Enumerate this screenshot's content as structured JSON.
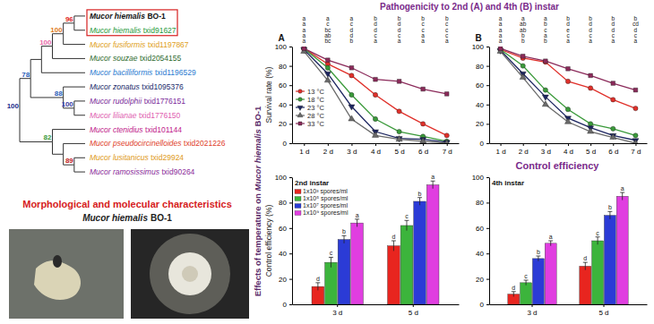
{
  "tree": {
    "root": {
      "support": 100,
      "color": "#1a2a8a",
      "children": [
        {
          "support": 78,
          "color": "#2a5cb8",
          "children": [
            {
              "children": [
                {
                  "support": 100,
                  "color": "#e86aa6",
                  "children": [
                    {
                      "support": 100,
                      "color": "#e07a1a",
                      "children": [
                        {
                          "support": 96,
                          "color": "#e02020",
                          "children": [
                            {
                              "name": "Mucor hiemalis",
                              "id": "BO-1",
                              "color": "#111111"
                            },
                            {
                              "name": "Mucor hiemalis",
                              "id": "txid91627",
                              "color": "#1f9a3a"
                            }
                          ]
                        },
                        {
                          "name": "Mucor fusiformis",
                          "id": "txid1197867",
                          "color": "#e0a020"
                        }
                      ]
                    },
                    {
                      "name": "Mucor souzae",
                      "id": "txid2054155",
                      "color": "#2e6b2e"
                    }
                  ]
                },
                {
                  "name": "Mucor bacilliformis",
                  "id": "txid1196529",
                  "color": "#2a7ad0"
                }
              ]
            },
            {
              "support": 88,
              "color": "#2a5cb8",
              "children": [
                {
                  "name": "Mucor zonatus",
                  "id": "txid1095376",
                  "color": "#1a2a6a"
                },
                {
                  "support": 100,
                  "color": "#3a3aa0",
                  "children": [
                    {
                      "name": "Mucor rudolphii",
                      "id": "txid1776151",
                      "color": "#7a2a9a"
                    },
                    {
                      "name": "Mucor lilianae",
                      "id": "txid1776150",
                      "color": "#e060b0"
                    }
                  ]
                }
              ]
            }
          ]
        },
        {
          "support": 82,
          "color": "#3a9a3a",
          "children": [
            {
              "name": "Mucor ctenidius",
              "id": "txid101144",
              "color": "#c0208a"
            },
            {
              "children": [
                {
                  "name": "Mucor pseudocircinelloides",
                  "id": "txid2021226",
                  "color": "#e0402a"
                },
                {
                  "support": 89,
                  "color": "#c02020",
                  "children": [
                    {
                      "name": "Mucor lusitanicus",
                      "id": "txid29924",
                      "color": "#e09a20"
                    },
                    {
                      "name": "Mucor ramosissimus",
                      "id": "txid90264",
                      "color": "#8a2a9a"
                    }
                  ]
                }
              ]
            }
          ]
        }
      ]
    }
  },
  "morphology": {
    "title": "Morphological and molecular characteristics",
    "species": "Mucor hiemalis",
    "strain": "BO-1"
  },
  "headings": {
    "pathogenicity": "Pathogenicity to 2nd (A) and 4th (B) instar",
    "control": "Control efficiency"
  },
  "y_title": {
    "prefix": "Effects of temperature on",
    "species": "Mucor hiemalis",
    "strain": "BO-1"
  },
  "chart_data": [
    {
      "type": "line",
      "title": "A",
      "y_label": "Survival rate (%)",
      "categories": [
        "1 d",
        "2 d",
        "3 d",
        "4 d",
        "5 d",
        "6 d",
        "7 d"
      ],
      "ylim": [
        0,
        100
      ],
      "yticks": [
        0,
        20,
        40,
        60,
        80,
        100
      ],
      "legend": "left",
      "series": [
        {
          "name": "13 °C",
          "color": "#e0302a",
          "marker": "circle",
          "values": [
            98,
            82,
            70,
            50,
            33,
            20,
            8
          ]
        },
        {
          "name": "18 °C",
          "color": "#3a9a3a",
          "marker": "circle",
          "values": [
            98,
            78,
            50,
            25,
            12,
            7,
            2
          ]
        },
        {
          "name": "23 °C",
          "color": "#1c2560",
          "marker": "triangle-down",
          "values": [
            97,
            72,
            38,
            12,
            5,
            4,
            1
          ]
        },
        {
          "name": "28 °C",
          "color": "#6a6a6a",
          "marker": "triangle",
          "values": [
            95,
            65,
            25,
            8,
            4,
            2,
            0
          ]
        },
        {
          "name": "33 °C",
          "color": "#8b2a5a",
          "marker": "square",
          "values": [
            98,
            86,
            78,
            66,
            64,
            56,
            51
          ]
        }
      ],
      "letters": [
        [
          "a",
          "a",
          "a",
          "a",
          "a"
        ],
        [
          "a",
          "c",
          "bc",
          "ab",
          "bc"
        ],
        [
          "a",
          "c",
          "d",
          "d",
          "b"
        ],
        [
          "b",
          "d",
          "d",
          "c",
          "a"
        ],
        [
          "b",
          "d",
          "d",
          "c",
          "a"
        ],
        [
          "b",
          "c",
          "c",
          "a",
          "a"
        ],
        [
          "b",
          "c",
          "c",
          "c",
          "a"
        ]
      ]
    },
    {
      "type": "line",
      "title": "B",
      "categories": [
        "1 d",
        "2 d",
        "3 d",
        "4 d",
        "5 d",
        "6 d",
        "7 d"
      ],
      "ylim": [
        0,
        100
      ],
      "yticks": [
        0,
        20,
        40,
        60,
        80,
        100
      ],
      "series": [
        {
          "color": "#e0302a",
          "marker": "circle",
          "values": [
            97,
            88,
            84,
            64,
            57,
            45,
            36
          ]
        },
        {
          "color": "#3a9a3a",
          "marker": "circle",
          "values": [
            97,
            80,
            55,
            35,
            20,
            15,
            8
          ]
        },
        {
          "color": "#1c2560",
          "marker": "triangle-down",
          "values": [
            96,
            72,
            48,
            26,
            16,
            8,
            3
          ]
        },
        {
          "color": "#6a6a6a",
          "marker": "triangle",
          "values": [
            95,
            68,
            40,
            22,
            12,
            6,
            0
          ]
        },
        {
          "color": "#8b2a5a",
          "marker": "square",
          "values": [
            98,
            90,
            85,
            77,
            70,
            62,
            55
          ]
        }
      ],
      "letters": [
        [
          "a",
          "a",
          "a",
          "a",
          "a"
        ],
        [
          "a",
          "ab",
          "ab",
          "b",
          "b"
        ],
        [
          "a",
          "b",
          "c",
          "a",
          "b"
        ],
        [
          "b",
          "d",
          "e",
          "c",
          "a"
        ],
        [
          "b",
          "d",
          "d",
          "c",
          "a"
        ],
        [
          "b",
          "d",
          "d",
          "c",
          "a"
        ],
        [
          "b",
          "cd",
          "d",
          "c",
          "a"
        ]
      ]
    },
    {
      "type": "bar",
      "title": "2nd instar",
      "y_label": "Control efficiency (%)",
      "categories": [
        "3 d",
        "5 d"
      ],
      "ylim": [
        0,
        100
      ],
      "yticks": [
        0,
        20,
        40,
        60,
        80,
        100
      ],
      "legend": "upper left",
      "series": [
        {
          "name": "1x10³ spores/ml",
          "color": "#e8251f",
          "values": [
            14,
            46
          ],
          "errors": [
            3,
            4
          ],
          "letters": [
            "d",
            "d"
          ]
        },
        {
          "name": "1x10⁵ spores/ml",
          "color": "#3cb43c",
          "values": [
            33,
            62
          ],
          "errors": [
            4,
            4
          ],
          "letters": [
            "c",
            "c"
          ]
        },
        {
          "name": "1x10⁷ spores/ml",
          "color": "#2b3bd6",
          "values": [
            51,
            81
          ],
          "errors": [
            3,
            3
          ],
          "letters": [
            "b",
            "b"
          ]
        },
        {
          "name": "1x10⁹ spores/ml",
          "color": "#e03ee0",
          "values": [
            64,
            94
          ],
          "errors": [
            3,
            3
          ],
          "letters": [
            "a",
            "a"
          ]
        }
      ]
    },
    {
      "type": "bar",
      "title": "4th instar",
      "categories": [
        "3 d",
        "5 d"
      ],
      "ylim": [
        0,
        100
      ],
      "yticks": [
        0,
        20,
        40,
        60,
        80,
        100
      ],
      "series": [
        {
          "color": "#e8251f",
          "values": [
            8,
            30
          ],
          "errors": [
            2,
            3
          ],
          "letters": [
            "d",
            "d"
          ]
        },
        {
          "color": "#3cb43c",
          "values": [
            17,
            50
          ],
          "errors": [
            2,
            3
          ],
          "letters": [
            "c",
            "c"
          ]
        },
        {
          "color": "#2b3bd6",
          "values": [
            36,
            70
          ],
          "errors": [
            2,
            3
          ],
          "letters": [
            "b",
            "b"
          ]
        },
        {
          "color": "#e03ee0",
          "values": [
            48,
            85
          ],
          "errors": [
            2,
            3
          ],
          "letters": [
            "a",
            "a"
          ]
        }
      ]
    }
  ]
}
